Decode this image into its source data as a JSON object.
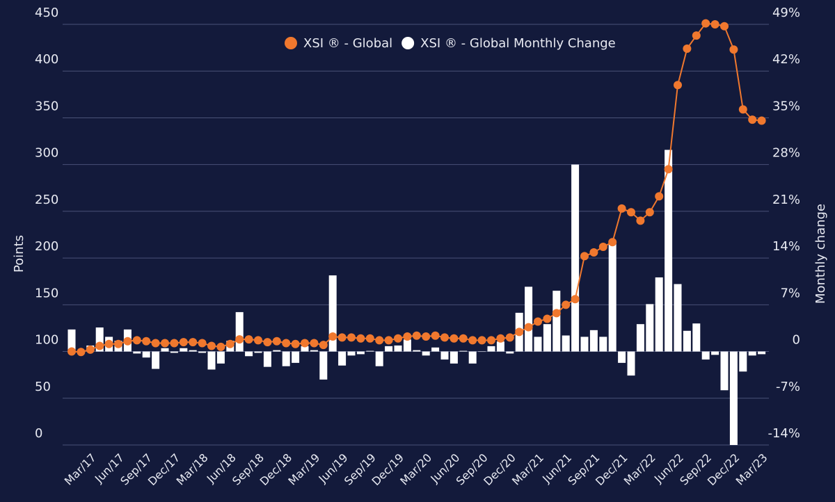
{
  "chart_data": {
    "type": "combo",
    "categories": [
      null,
      null,
      "Mar/17",
      null,
      null,
      "Jun/17",
      null,
      null,
      "Sep/17",
      null,
      null,
      "Dec/17",
      null,
      null,
      "Mar/18",
      null,
      null,
      "Jun/18",
      null,
      null,
      "Sep/18",
      null,
      null,
      "Dec/18",
      null,
      null,
      "Mar/19",
      null,
      null,
      "Jun/19",
      null,
      null,
      "Sep/19",
      null,
      null,
      "Dec/19",
      null,
      null,
      "Mar/20",
      null,
      null,
      "Jun/20",
      null,
      null,
      "Sep/20",
      null,
      null,
      "Dec/20",
      null,
      null,
      "Mar/21",
      null,
      null,
      "Jun/21",
      null,
      null,
      "Sep/21",
      null,
      null,
      "Dec/21",
      null,
      null,
      "Mar/22",
      null,
      null,
      "Jun/22",
      null,
      null,
      "Sep/22",
      null,
      null,
      "Dec/22",
      null,
      null,
      "Mar/23"
    ],
    "series": [
      {
        "name": "XSI ® - Global Monthly Change",
        "type": "bar",
        "axis": "y2",
        "color": "#ffffff",
        "values": [
          3.3,
          -0.2,
          0.9,
          3.6,
          2.2,
          1.6,
          3.3,
          -0.3,
          -0.9,
          -2.6,
          0.5,
          -0.2,
          0.5,
          0.2,
          -0.2,
          -2.7,
          -1.8,
          1.6,
          5.9,
          -0.7,
          -0.2,
          -2.3,
          0.2,
          -2.2,
          -1.7,
          0.8,
          0.2,
          -4.2,
          11.4,
          -2.1,
          -0.6,
          -0.4,
          0.1,
          -2.2,
          0.8,
          0.9,
          1.8,
          0.2,
          -0.6,
          0.6,
          -1.2,
          -1.8,
          0.1,
          -1.8,
          0,
          0.8,
          1.5,
          -0.3,
          5.8,
          9.7,
          2.2,
          4.1,
          9.1,
          2.4,
          28,
          2.2,
          3.2,
          2.2,
          16.4,
          -1.7,
          -3.6,
          4.1,
          7.1,
          11.1,
          30.2,
          10.1,
          3.1,
          4.2,
          -1.2,
          -0.5,
          -5.8,
          -14,
          -3.0,
          -0.6,
          -0.4
        ]
      },
      {
        "name": "XSI ® - Global",
        "type": "line",
        "color": "#f0782e",
        "values": [
          100,
          99.5,
          102,
          106,
          108,
          108,
          111,
          112,
          111,
          109,
          109,
          109,
          110,
          110,
          109,
          106,
          105,
          108,
          113,
          113,
          112,
          110,
          111,
          109,
          108,
          109,
          109,
          107,
          116,
          115,
          115,
          114,
          114,
          112,
          112,
          114,
          116,
          117,
          116,
          117,
          115,
          114,
          114,
          112,
          112,
          112,
          114,
          115,
          121,
          126,
          132,
          135,
          141,
          150,
          156,
          202,
          206,
          212,
          217,
          253,
          249,
          240,
          249,
          266,
          295,
          385,
          424,
          438,
          451,
          450,
          448,
          423,
          359,
          348,
          347
        ]
      }
    ],
    "legend_order": [
      1,
      0
    ],
    "ylabel": "Points",
    "y2label": "Monthly change",
    "ylim": [
      0,
      450
    ],
    "yticks": [
      0,
      50,
      100,
      150,
      200,
      250,
      300,
      350,
      400,
      450
    ],
    "y2lim": [
      -14,
      49
    ],
    "y2ticks": [
      {
        "value": -14,
        "label": "-14%"
      },
      {
        "value": -7,
        "label": "-7%"
      },
      0,
      {
        "value": 7,
        "label": "7%"
      },
      {
        "value": 14,
        "label": "14%"
      },
      {
        "value": 21,
        "label": "21%"
      },
      {
        "value": 28,
        "label": "28%"
      },
      {
        "value": 35,
        "label": "35%"
      },
      {
        "value": 42,
        "label": "42%"
      },
      {
        "value": 49,
        "label": "49%"
      }
    ],
    "grid": true
  }
}
